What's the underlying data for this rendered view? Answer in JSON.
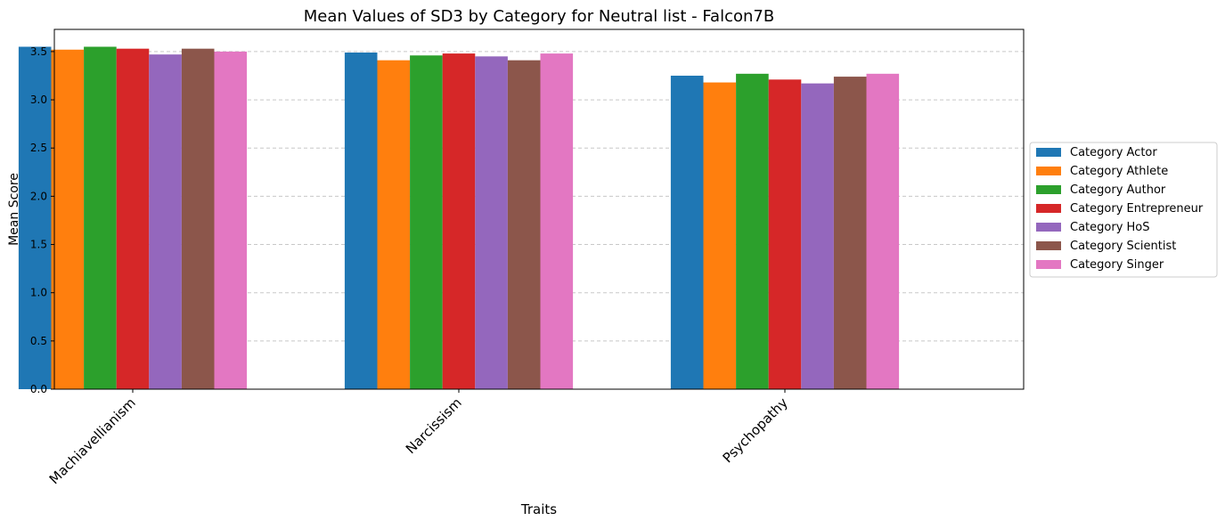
{
  "chart_data": {
    "type": "bar",
    "title": "Mean Values of SD3 by Category for Neutral list - Falcon7B",
    "xlabel": "Traits",
    "ylabel": "Mean Score",
    "categories": [
      "Machiavellianism",
      "Narcissism",
      "Psychopathy"
    ],
    "ylim": [
      0,
      3.73
    ],
    "yticks": [
      "0.0",
      "0.5",
      "1.0",
      "1.5",
      "2.0",
      "2.5",
      "3.0",
      "3.5"
    ],
    "grid": "y-dashed",
    "legend_position": "right",
    "series": [
      {
        "name": "Category Actor",
        "color": "#1f77b4",
        "values": [
          3.55,
          3.49,
          3.25
        ]
      },
      {
        "name": "Category Athlete",
        "color": "#ff7f0e",
        "values": [
          3.52,
          3.41,
          3.18
        ]
      },
      {
        "name": "Category Author",
        "color": "#2ca02c",
        "values": [
          3.55,
          3.46,
          3.27
        ]
      },
      {
        "name": "Category Entrepreneur",
        "color": "#d62728",
        "values": [
          3.53,
          3.48,
          3.21
        ]
      },
      {
        "name": "Category HoS",
        "color": "#9467bd",
        "values": [
          3.47,
          3.45,
          3.17
        ]
      },
      {
        "name": "Category Scientist",
        "color": "#8c564b",
        "values": [
          3.53,
          3.41,
          3.24
        ]
      },
      {
        "name": "Category Singer",
        "color": "#e377c2",
        "values": [
          3.5,
          3.48,
          3.27
        ]
      }
    ]
  }
}
